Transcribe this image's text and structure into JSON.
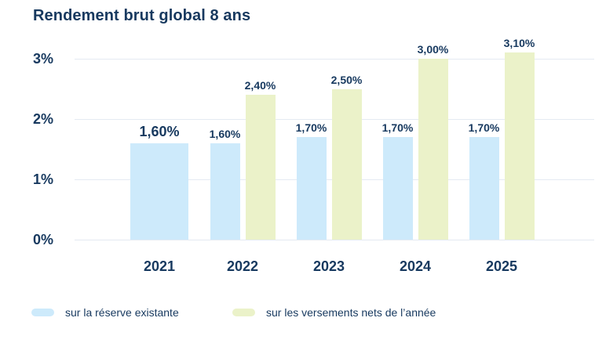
{
  "colors": {
    "navy_text": "#17395f",
    "reserve_bar": "#cdeafb",
    "versements_bar": "#ebf2c9",
    "gridline": "#e4eaf2",
    "background": "#ffffff"
  },
  "chart_data": {
    "type": "bar",
    "title": "Rendement brut global 8 ans",
    "categories": [
      "2021",
      "2022",
      "2023",
      "2024",
      "2025"
    ],
    "series": [
      {
        "name": "sur la réserve existante",
        "key": "reserve-existante",
        "color": "#cdeafb",
        "values": [
          1.6,
          1.6,
          1.7,
          1.7,
          1.7
        ],
        "labels": [
          "1,60%",
          "1,60%",
          "1,70%",
          "1,70%",
          "1,70%"
        ]
      },
      {
        "name": "sur les versements nets de l’année",
        "key": "versements-nets",
        "color": "#ebf2c9",
        "values": [
          null,
          2.4,
          2.5,
          3.0,
          3.1
        ],
        "labels": [
          null,
          "2,40%",
          "2,50%",
          "3,00%",
          "3,10%"
        ]
      }
    ],
    "xlabel": "",
    "ylabel": "",
    "ylim": [
      0,
      3.3
    ],
    "yticks": [
      0,
      1,
      2,
      3
    ],
    "ytick_labels": [
      "0%",
      "1%",
      "2%",
      "3%"
    ],
    "grid": true,
    "value_label_format": "french-comma-percent",
    "legend_position": "bottom"
  }
}
